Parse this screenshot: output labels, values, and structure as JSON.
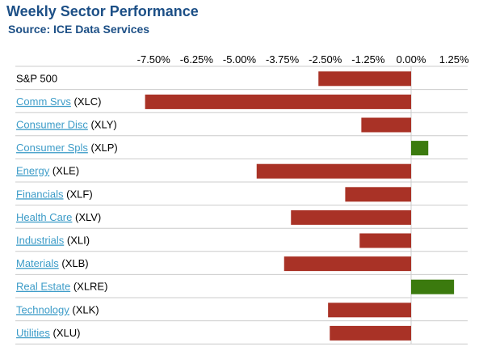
{
  "title": "Weekly Sector Performance",
  "subtitle": "Source: ICE Data Services",
  "chart_data": {
    "type": "bar",
    "orientation": "horizontal",
    "xlim": [
      -8.25,
      1.75
    ],
    "ticks": [
      {
        "value": -7.5,
        "label": "-7.50%"
      },
      {
        "value": -6.25,
        "label": "-6.25%"
      },
      {
        "value": -5.0,
        "label": "-5.00%"
      },
      {
        "value": -3.75,
        "label": "-3.75%"
      },
      {
        "value": -2.5,
        "label": "-2.50%"
      },
      {
        "value": -1.25,
        "label": "-1.25%"
      },
      {
        "value": 0.0,
        "label": "0.00%"
      },
      {
        "value": 1.25,
        "label": "1.25%"
      }
    ],
    "colors": {
      "negative": "#a93226",
      "positive": "#3b7a0e",
      "link": "#3d9cc8",
      "title": "#1c4f86",
      "grid": "#cccccc"
    },
    "rows": [
      {
        "name": "S&P 500",
        "ticker": "",
        "link": false,
        "value": -2.7
      },
      {
        "name": "Comm Srvs",
        "ticker": "(XLC)",
        "link": true,
        "value": -7.75
      },
      {
        "name": "Consumer Disc",
        "ticker": "(XLY)",
        "link": true,
        "value": -1.45
      },
      {
        "name": "Consumer Spls",
        "ticker": "(XLP)",
        "link": true,
        "value": 0.5
      },
      {
        "name": "Energy",
        "ticker": "(XLE)",
        "link": true,
        "value": -4.5
      },
      {
        "name": "Financials",
        "ticker": "(XLF)",
        "link": true,
        "value": -1.92
      },
      {
        "name": "Health Care",
        "ticker": "(XLV)",
        "link": true,
        "value": -3.5
      },
      {
        "name": "Industrials",
        "ticker": "(XLI)",
        "link": true,
        "value": -1.5
      },
      {
        "name": "Materials",
        "ticker": "(XLB)",
        "link": true,
        "value": -3.7
      },
      {
        "name": "Real Estate",
        "ticker": "(XLRE)",
        "link": true,
        "value": 1.25
      },
      {
        "name": "Technology",
        "ticker": "(XLK)",
        "link": true,
        "value": -2.42
      },
      {
        "name": "Utilities",
        "ticker": "(XLU)",
        "link": true,
        "value": -2.37
      }
    ]
  }
}
